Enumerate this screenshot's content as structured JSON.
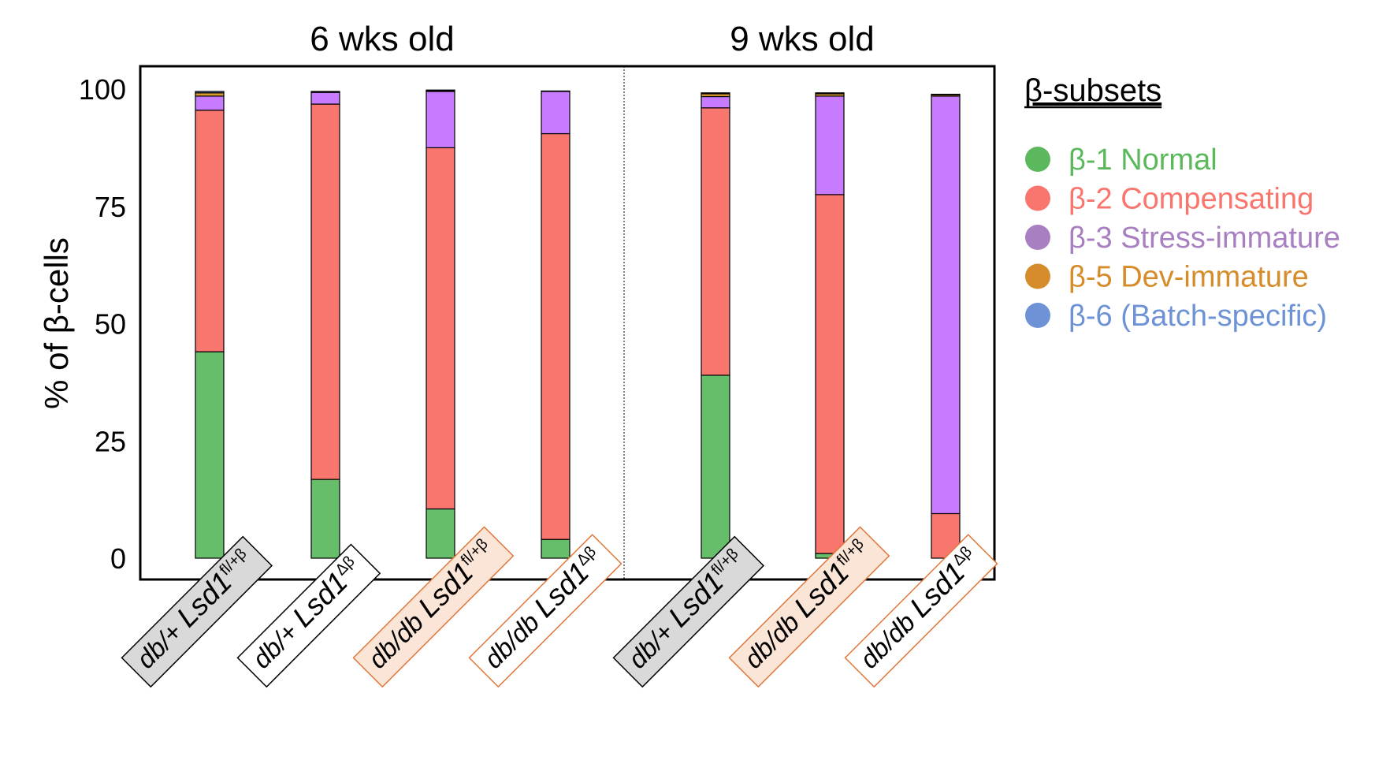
{
  "chart_data": {
    "type": "bar",
    "stacked": true,
    "ylabel": "% of β-cells",
    "ylim": [
      0,
      100
    ],
    "yticks": [
      0,
      25,
      50,
      75,
      100
    ],
    "groups": [
      {
        "title": "6 wks old",
        "categories": [
          0,
          1,
          2,
          3
        ]
      },
      {
        "title": "9 wks old",
        "categories": [
          4,
          5,
          6
        ]
      }
    ],
    "categories": [
      {
        "prefix": "db/+ ",
        "gene": "Lsd1",
        "sup": "fl/+β",
        "box": "gray"
      },
      {
        "prefix": "db/+ ",
        "gene": "Lsd1",
        "sup": "Δβ",
        "box": "white-black"
      },
      {
        "prefix": "db/db ",
        "gene": "Lsd1",
        "sup": "fl/+β",
        "box": "peach"
      },
      {
        "prefix": "db/db ",
        "gene": "Lsd1",
        "sup": "Δβ",
        "box": "white-orange"
      },
      {
        "prefix": "db/+ ",
        "gene": "Lsd1",
        "sup": "fl/+β",
        "box": "gray"
      },
      {
        "prefix": "db/db ",
        "gene": "Lsd1",
        "sup": "fl/+β",
        "box": "peach"
      },
      {
        "prefix": "db/db ",
        "gene": "Lsd1",
        "sup": "Δβ",
        "box": "white-orange"
      }
    ],
    "legend": {
      "title": "β-subsets",
      "position": "right"
    },
    "series": [
      {
        "name": "β-1 Normal",
        "color": "#66bd6a",
        "legend_color": "#5cb85c",
        "values": [
          44,
          16.8,
          10.5,
          4,
          39,
          1,
          0
        ]
      },
      {
        "name": "β-2 Compensating",
        "color": "#f8766d",
        "legend_color": "#f8766d",
        "values": [
          51.5,
          80,
          77,
          86.5,
          57,
          76.5,
          9.5
        ]
      },
      {
        "name": "β-3 Stress-immature",
        "color": "#c77cff",
        "legend_color": "#a87fc0",
        "values": [
          3,
          2.5,
          12,
          9,
          2.4,
          21,
          89
        ]
      },
      {
        "name": "β-5 Dev-immature",
        "color": "#d89b2a",
        "legend_color": "#d68c2a",
        "values": [
          0.7,
          0,
          0.2,
          0,
          0.6,
          0.5,
          0.3
        ]
      },
      {
        "name": "β-6 (Batch-specific)",
        "color": "#6d93d6",
        "legend_color": "#6d93d6",
        "values": [
          0.3,
          0.2,
          0.1,
          0.1,
          0.2,
          0.2,
          0.1
        ]
      }
    ],
    "box_styles": {
      "gray": {
        "fill": "#d9d9d9",
        "stroke": "#000000"
      },
      "white-black": {
        "fill": "#ffffff",
        "stroke": "#000000"
      },
      "peach": {
        "fill": "#fbe5d6",
        "stroke": "#e0783c"
      },
      "white-orange": {
        "fill": "#ffffff",
        "stroke": "#e0783c"
      }
    }
  }
}
